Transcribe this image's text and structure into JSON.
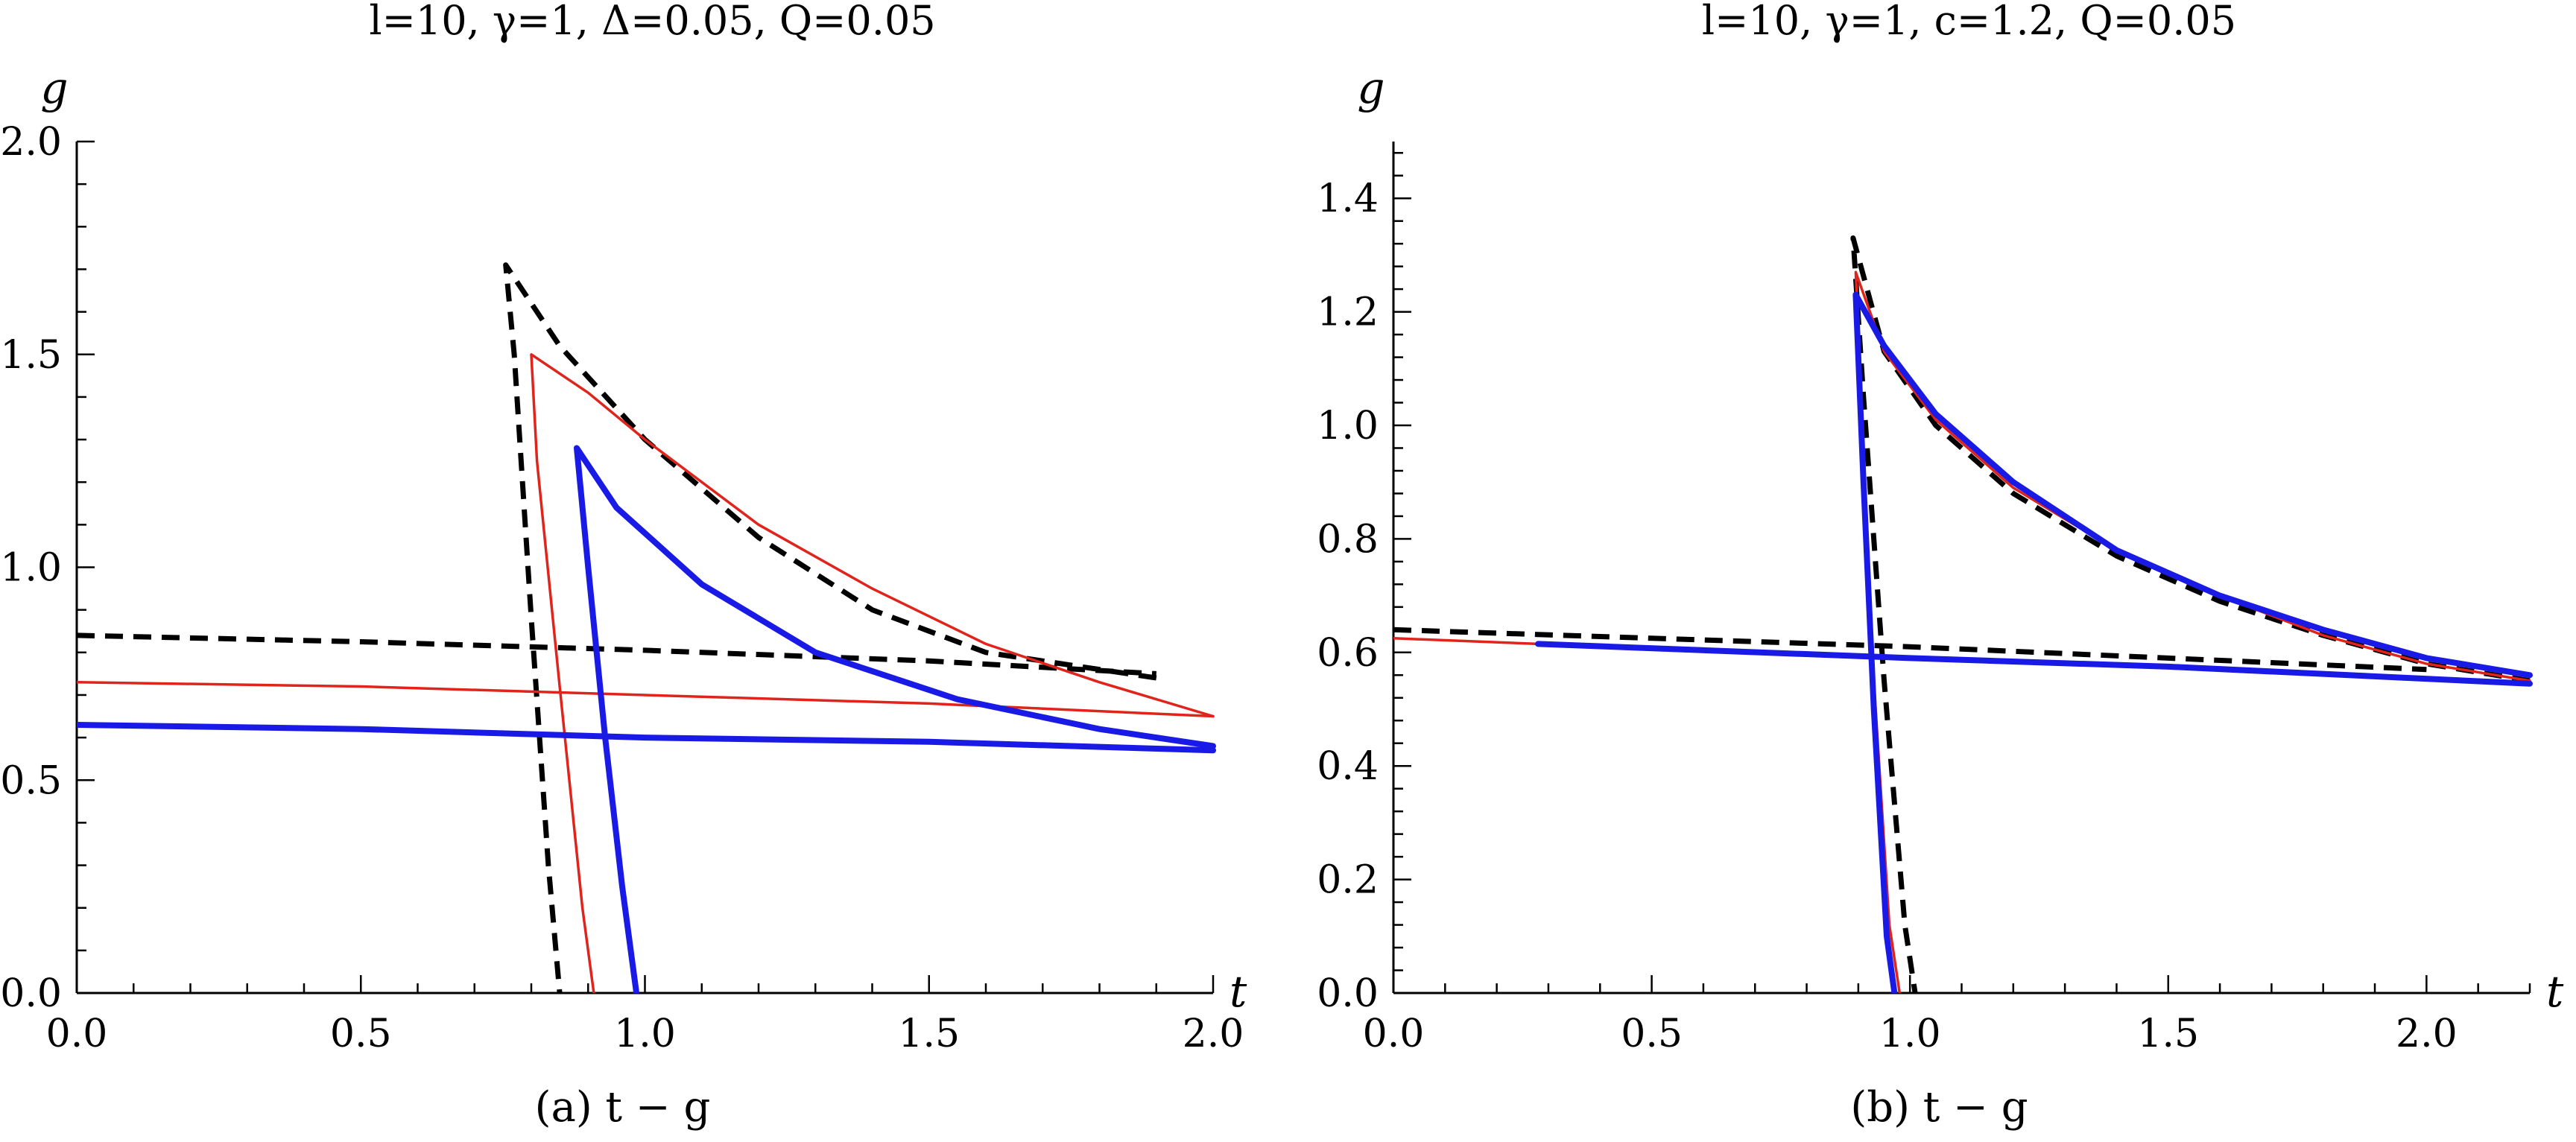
{
  "chart_data": [
    {
      "type": "line",
      "title": "l=10, γ=1, Δ=0.05, Q=0.05",
      "caption": "(a) t − g",
      "xlabel": "t",
      "ylabel": "g",
      "xlim": [
        0,
        2.0
      ],
      "ylim": [
        0,
        2.0
      ],
      "xticks": [
        0.0,
        0.5,
        1.0,
        1.5,
        2.0
      ],
      "xtick_labels": [
        "0.0",
        "0.5",
        "1.0",
        "1.5",
        "2.0"
      ],
      "yticks": [
        0.0,
        0.5,
        1.0,
        1.5,
        2.0
      ],
      "ytick_labels": [
        "0.0",
        "0.5",
        "1.0",
        "1.5",
        "2.0"
      ],
      "grid": false,
      "series": [
        {
          "color": "#000000",
          "style": "dashed",
          "x": [
            1.9,
            1.6,
            1.4,
            1.2,
            1.0,
            0.85,
            0.755,
            0.77,
            0.8,
            0.83,
            0.85
          ],
          "y": [
            0.74,
            0.8,
            0.9,
            1.07,
            1.3,
            1.52,
            1.71,
            1.5,
            0.88,
            0.3,
            0.0
          ]
        },
        {
          "color": "#000000",
          "style": "dashed",
          "x": [
            0.0,
            0.5,
            1.0,
            1.5,
            1.9
          ],
          "y": [
            0.84,
            0.825,
            0.805,
            0.78,
            0.75
          ]
        },
        {
          "color": "#e0241c",
          "style": "solid",
          "x": [
            2.0,
            1.8,
            1.6,
            1.4,
            1.2,
            1.0,
            0.9,
            0.8,
            0.81,
            0.85,
            0.89,
            0.91
          ],
          "y": [
            0.65,
            0.73,
            0.82,
            0.95,
            1.1,
            1.3,
            1.41,
            1.5,
            1.25,
            0.72,
            0.2,
            0.0
          ]
        },
        {
          "color": "#e0241c",
          "style": "solid",
          "x": [
            0.0,
            0.5,
            1.0,
            1.5,
            2.0
          ],
          "y": [
            0.73,
            0.72,
            0.7,
            0.68,
            0.65
          ]
        },
        {
          "color": "#1a1ae6",
          "style": "solid-thick",
          "x": [
            2.0,
            1.8,
            1.55,
            1.3,
            1.1,
            0.95,
            0.88,
            0.9,
            0.93,
            0.96,
            0.985
          ],
          "y": [
            0.58,
            0.62,
            0.69,
            0.8,
            0.96,
            1.14,
            1.28,
            1.0,
            0.6,
            0.25,
            0.0
          ]
        },
        {
          "color": "#1a1ae6",
          "style": "solid-thick",
          "x": [
            0.0,
            0.5,
            1.0,
            1.5,
            2.0
          ],
          "y": [
            0.63,
            0.62,
            0.6,
            0.59,
            0.57
          ]
        }
      ]
    },
    {
      "type": "line",
      "title": "l=10, γ=1, c=1.2, Q=0.05",
      "caption": "(b) t − g",
      "xlabel": "t",
      "ylabel": "g",
      "xlim": [
        0,
        2.2
      ],
      "ylim": [
        0,
        1.5
      ],
      "xticks": [
        0.0,
        0.5,
        1.0,
        1.5,
        2.0
      ],
      "xtick_labels": [
        "0.0",
        "0.5",
        "1.0",
        "1.5",
        "2.0"
      ],
      "yticks": [
        0.0,
        0.2,
        0.4,
        0.6,
        0.8,
        1.0,
        1.2,
        1.4
      ],
      "ytick_labels": [
        "0.0",
        "0.2",
        "0.4",
        "0.6",
        "0.8",
        "1.0",
        "1.2",
        "1.4"
      ],
      "grid": false,
      "series": [
        {
          "color": "#000000",
          "style": "dashed",
          "x": [
            2.2,
            2.0,
            1.8,
            1.6,
            1.4,
            1.2,
            1.05,
            0.95,
            0.89,
            0.91,
            0.95,
            0.99,
            1.01
          ],
          "y": [
            0.55,
            0.58,
            0.63,
            0.69,
            0.77,
            0.88,
            1.0,
            1.13,
            1.33,
            1.05,
            0.55,
            0.12,
            0.0
          ]
        },
        {
          "color": "#000000",
          "style": "dashed",
          "x": [
            0.0,
            0.5,
            1.0,
            1.5,
            2.0
          ],
          "y": [
            0.64,
            0.625,
            0.61,
            0.59,
            0.57
          ]
        },
        {
          "color": "#e0241c",
          "style": "solid",
          "x": [
            2.2,
            2.0,
            1.8,
            1.6,
            1.4,
            1.2,
            1.05,
            0.95,
            0.895,
            0.91,
            0.93,
            0.96,
            0.98
          ],
          "y": [
            0.55,
            0.58,
            0.63,
            0.7,
            0.78,
            0.89,
            1.01,
            1.13,
            1.27,
            0.95,
            0.55,
            0.12,
            0.0
          ]
        },
        {
          "color": "#e0241c",
          "style": "solid",
          "x": [
            0.0,
            0.28
          ],
          "y": [
            0.625,
            0.615
          ]
        },
        {
          "color": "#1a1ae6",
          "style": "solid-thick",
          "x": [
            2.2,
            2.0,
            1.8,
            1.6,
            1.4,
            1.2,
            1.05,
            0.95,
            0.895,
            0.91,
            0.93,
            0.955,
            0.97
          ],
          "y": [
            0.56,
            0.59,
            0.64,
            0.7,
            0.78,
            0.9,
            1.02,
            1.14,
            1.23,
            0.9,
            0.5,
            0.1,
            0.0
          ]
        },
        {
          "color": "#1a1ae6",
          "style": "solid-thick",
          "x": [
            0.28,
            1.0,
            1.5,
            2.2
          ],
          "y": [
            0.615,
            0.59,
            0.575,
            0.545
          ]
        }
      ]
    }
  ]
}
